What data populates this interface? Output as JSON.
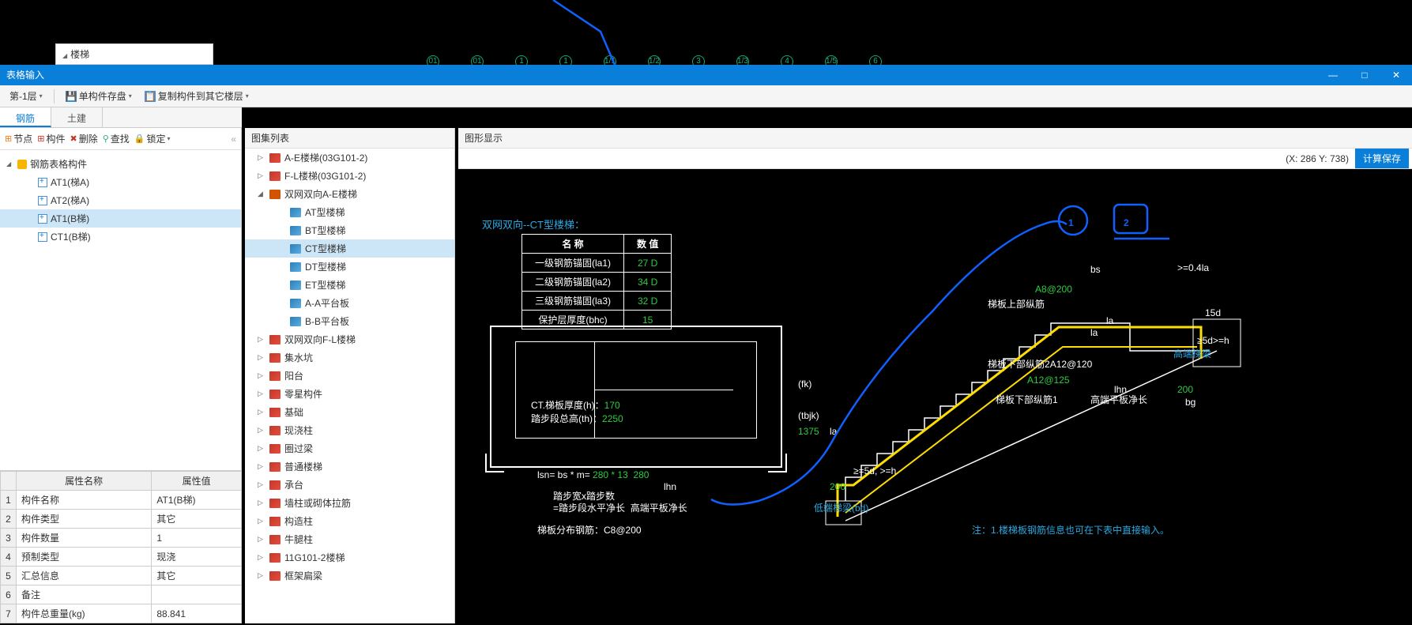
{
  "topSnippet": "楼梯",
  "window": {
    "title": "表格输入"
  },
  "toolbar": {
    "floor": "第-1层",
    "saveSingle": "单构件存盘",
    "copyTo": "复制构件到其它楼层"
  },
  "tabs": {
    "rebar": "钢筋",
    "civil": "土建"
  },
  "leftToolbar": {
    "node": "节点",
    "member": "构件",
    "delete": "删除",
    "find": "查找",
    "lock": "锁定"
  },
  "leftTree": {
    "root": "钢筋表格构件",
    "items": [
      "AT1(梯A)",
      "AT2(梯A)",
      "AT1(B梯)",
      "CT1(B梯)"
    ],
    "selectedIndex": 2
  },
  "props": {
    "headers": [
      "属性名称",
      "属性值"
    ],
    "rows": [
      [
        "构件名称",
        "AT1(B梯)"
      ],
      [
        "构件类型",
        "其它"
      ],
      [
        "构件数量",
        "1"
      ],
      [
        "预制类型",
        "现浇"
      ],
      [
        "汇总信息",
        "其它"
      ],
      [
        "备注",
        ""
      ],
      [
        "构件总重量(kg)",
        "88.841"
      ]
    ]
  },
  "midTitle": "图集列表",
  "midTree": [
    {
      "d": 1,
      "exp": "▷",
      "ico": "book-red",
      "label": "A-E楼梯(03G101-2)"
    },
    {
      "d": 1,
      "exp": "▷",
      "ico": "book-red",
      "label": "F-L楼梯(03G101-2)"
    },
    {
      "d": 1,
      "exp": "◢",
      "ico": "book-open",
      "label": "双网双向A-E楼梯"
    },
    {
      "d": 2,
      "exp": "",
      "ico": "book-blue",
      "label": "AT型楼梯"
    },
    {
      "d": 2,
      "exp": "",
      "ico": "book-blue",
      "label": "BT型楼梯"
    },
    {
      "d": 2,
      "exp": "",
      "ico": "book-blue",
      "label": "CT型楼梯",
      "sel": true
    },
    {
      "d": 2,
      "exp": "",
      "ico": "book-blue",
      "label": "DT型楼梯"
    },
    {
      "d": 2,
      "exp": "",
      "ico": "book-blue",
      "label": "ET型楼梯"
    },
    {
      "d": 2,
      "exp": "",
      "ico": "book-blue",
      "label": "A-A平台板"
    },
    {
      "d": 2,
      "exp": "",
      "ico": "book-blue",
      "label": "B-B平台板"
    },
    {
      "d": 1,
      "exp": "▷",
      "ico": "book-red",
      "label": "双网双向F-L楼梯"
    },
    {
      "d": 1,
      "exp": "▷",
      "ico": "book-red",
      "label": "集水坑"
    },
    {
      "d": 1,
      "exp": "▷",
      "ico": "book-red",
      "label": "阳台"
    },
    {
      "d": 1,
      "exp": "▷",
      "ico": "book-red",
      "label": "零星构件"
    },
    {
      "d": 1,
      "exp": "▷",
      "ico": "book-red",
      "label": "基础"
    },
    {
      "d": 1,
      "exp": "▷",
      "ico": "book-red",
      "label": "现浇柱"
    },
    {
      "d": 1,
      "exp": "▷",
      "ico": "book-red",
      "label": "圈过梁"
    },
    {
      "d": 1,
      "exp": "▷",
      "ico": "book-red",
      "label": "普通楼梯"
    },
    {
      "d": 1,
      "exp": "▷",
      "ico": "book-red",
      "label": "承台"
    },
    {
      "d": 1,
      "exp": "▷",
      "ico": "book-red",
      "label": "墙柱或砌体拉筋"
    },
    {
      "d": 1,
      "exp": "▷",
      "ico": "book-red",
      "label": "构造柱"
    },
    {
      "d": 1,
      "exp": "▷",
      "ico": "book-red",
      "label": "牛腿柱"
    },
    {
      "d": 1,
      "exp": "▷",
      "ico": "book-red",
      "label": "11G101-2楼梯"
    },
    {
      "d": 1,
      "exp": "▷",
      "ico": "book-red",
      "label": "框架扁梁"
    }
  ],
  "rightTitle": "图形显示",
  "coord": "(X: 286 Y: 738)",
  "saveCalc": "计算保存",
  "drawing": {
    "title": "双网双向--CT型楼梯：",
    "paramHead": [
      "名 称",
      "数 值"
    ],
    "params": [
      [
        "一级钢筋锚固(la1)",
        "27 D"
      ],
      [
        "二级钢筋锚固(la2)",
        "34 D"
      ],
      [
        "三级钢筋锚固(la3)",
        "32 D"
      ],
      [
        "保护层厚度(bhc)",
        "15"
      ]
    ],
    "planText": {
      "l1": "CT.梯板厚度(h)：",
      "v1": "170",
      "l2": "踏步段总高(th)：",
      "v2": "2250"
    },
    "fk": "(fk)",
    "tbjk": "(tbjk)",
    "tbjkVal": "1375",
    "lsnLabel": "lsn= bs * m=",
    "lsnVal": "280 * 13",
    "lsn280": "280",
    "lhn": "lhn",
    "stepLabel1": "踏步宽x踏步数",
    "stepLabel2": "=踏步段水平净长",
    "highPlat": "高端平板净长",
    "distRebar": "梯板分布钢筋：",
    "distRebarVal": "C8@200",
    "lowBeam": "低端梯梁(bd)",
    "lowBeamVal": "200",
    "la": "la",
    "geq": "≥=5d, >=h",
    "bs": "bs",
    "geq04la": ">=0.4la",
    "a8": "A8@200",
    "upperBar": "梯板上部纵筋",
    "lowerBar2": "梯板下部纵筋2",
    "a12120": "A12@120",
    "a12125": "A12@125",
    "lowerBar1": "梯板下部纵筋1",
    "highPlat2": "高端平板净长",
    "highBeam": "高端梯梁",
    "fifteenD": "15d",
    "geq5dh": "≥5d>=h",
    "lhn2": "lhn",
    "bg": "bg",
    "bgVal": "200",
    "note": "注：1.楼梯板钢筋信息也可在下表中直接输入。",
    "ruler": [
      "01",
      "01",
      "1",
      "1",
      "1/1",
      "1/2",
      "3",
      "1/3",
      "4",
      "1/5",
      "6",
      "/6"
    ]
  }
}
